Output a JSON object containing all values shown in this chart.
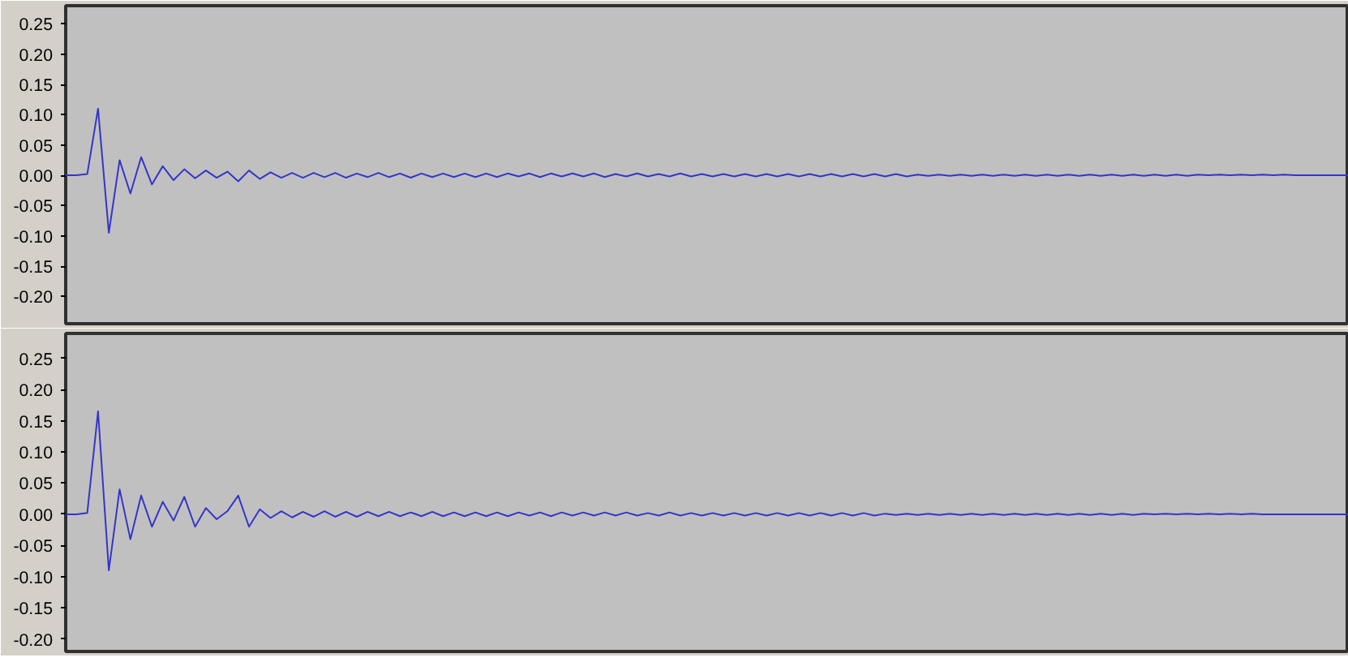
{
  "chart_data": [
    {
      "type": "line",
      "categories": [
        null,
        null,
        null,
        null,
        null,
        null,
        null,
        null,
        null,
        null,
        null,
        null,
        null,
        null,
        null,
        null,
        null,
        null,
        null,
        null,
        null,
        null,
        null,
        null,
        null,
        null,
        null,
        null,
        null,
        null,
        null,
        null,
        null,
        null,
        null,
        null,
        null,
        null,
        null,
        null,
        null,
        null,
        null,
        null,
        null,
        null,
        null,
        null,
        null,
        null,
        null,
        null,
        null,
        null,
        null,
        null,
        null,
        null,
        null,
        null,
        null,
        null,
        null,
        null,
        null,
        null,
        null,
        null,
        null,
        null,
        null,
        null,
        null,
        null,
        null,
        null,
        null,
        null,
        null,
        null,
        null,
        null,
        null,
        null,
        null,
        null,
        null,
        null,
        null,
        null,
        null,
        null,
        null,
        null,
        null,
        null,
        null,
        null,
        null,
        null,
        null,
        null,
        null,
        null,
        null,
        null,
        null,
        null,
        null,
        null,
        null,
        null,
        null,
        null,
        null,
        null,
        null,
        null,
        null,
        null
      ],
      "series": [
        {
          "color": "#3535c8",
          "values": [
            0,
            0,
            0.002,
            0.11,
            -0.095,
            0.025,
            -0.03,
            0.03,
            -0.015,
            0.015,
            -0.008,
            0.01,
            -0.005,
            0.008,
            -0.004,
            0.006,
            -0.01,
            0.008,
            -0.006,
            0.005,
            -0.004,
            0.004,
            -0.004,
            0.004,
            -0.003,
            0.004,
            -0.004,
            0.003,
            -0.003,
            0.004,
            -0.003,
            0.003,
            -0.004,
            0.003,
            -0.003,
            0.003,
            -0.003,
            0.003,
            -0.003,
            0.003,
            -0.003,
            0.003,
            -0.002,
            0.003,
            -0.003,
            0.003,
            -0.002,
            0.003,
            -0.002,
            0.003,
            -0.003,
            0.002,
            -0.002,
            0.003,
            -0.002,
            0.002,
            -0.002,
            0.003,
            -0.002,
            0.002,
            -0.002,
            0.002,
            -0.002,
            0.002,
            -0.002,
            0.002,
            -0.002,
            0.002,
            -0.002,
            0.002,
            -0.002,
            0.002,
            -0.002,
            0.002,
            -0.002,
            0.002,
            -0.002,
            0.002,
            -0.002,
            0.001,
            -0.001,
            0.001,
            -0.001,
            0.001,
            -0.001,
            0.001,
            -0.001,
            0.001,
            -0.001,
            0.001,
            -0.001,
            0.001,
            -0.001,
            0.001,
            -0.001,
            0.001,
            -0.001,
            0.001,
            -0.001,
            0.001,
            -0.001,
            0.001,
            -0.001,
            0.001,
            -0.001,
            0.001,
            0,
            0.001,
            0,
            0.001,
            0,
            0.001,
            0,
            0.001,
            0,
            0,
            0,
            0,
            0,
            0
          ]
        }
      ],
      "ylim": [
        -0.245,
        0.28
      ],
      "yticks": [
        {
          "value": 0.25,
          "label": "0.25"
        },
        {
          "value": 0.2,
          "label": "0.20"
        },
        {
          "value": 0.15,
          "label": "0.15"
        },
        {
          "value": 0.1,
          "label": "0.10"
        },
        {
          "value": 0.05,
          "label": "0.05"
        },
        {
          "value": 0,
          "label": "0.00"
        },
        {
          "value": -0.05,
          "label": "-0.05"
        },
        {
          "value": -0.1,
          "label": "-0.10"
        },
        {
          "value": -0.15,
          "label": "-0.15"
        },
        {
          "value": -0.2,
          "label": "-0.20"
        }
      ],
      "tick_labels": "y",
      "grid": false
    },
    {
      "type": "line",
      "categories": [
        null,
        null,
        null,
        null,
        null,
        null,
        null,
        null,
        null,
        null,
        null,
        null,
        null,
        null,
        null,
        null,
        null,
        null,
        null,
        null,
        null,
        null,
        null,
        null,
        null,
        null,
        null,
        null,
        null,
        null,
        null,
        null,
        null,
        null,
        null,
        null,
        null,
        null,
        null,
        null,
        null,
        null,
        null,
        null,
        null,
        null,
        null,
        null,
        null,
        null,
        null,
        null,
        null,
        null,
        null,
        null,
        null,
        null,
        null,
        null,
        null,
        null,
        null,
        null,
        null,
        null,
        null,
        null,
        null,
        null,
        null,
        null,
        null,
        null,
        null,
        null,
        null,
        null,
        null,
        null,
        null,
        null,
        null,
        null,
        null,
        null,
        null,
        null,
        null,
        null,
        null,
        null,
        null,
        null,
        null,
        null,
        null,
        null,
        null,
        null,
        null,
        null,
        null,
        null,
        null,
        null,
        null,
        null,
        null,
        null,
        null,
        null,
        null,
        null,
        null,
        null,
        null,
        null,
        null,
        null
      ],
      "series": [
        {
          "color": "#3535c8",
          "values": [
            0,
            0,
            0.002,
            0.165,
            -0.09,
            0.04,
            -0.04,
            0.03,
            -0.02,
            0.02,
            -0.01,
            0.028,
            -0.02,
            0.01,
            -0.008,
            0.005,
            0.03,
            -0.02,
            0.008,
            -0.006,
            0.005,
            -0.005,
            0.004,
            -0.004,
            0.005,
            -0.004,
            0.004,
            -0.004,
            0.004,
            -0.003,
            0.004,
            -0.003,
            0.003,
            -0.003,
            0.004,
            -0.003,
            0.003,
            -0.003,
            0.003,
            -0.003,
            0.003,
            -0.003,
            0.003,
            -0.002,
            0.003,
            -0.003,
            0.003,
            -0.002,
            0.003,
            -0.002,
            0.003,
            -0.002,
            0.003,
            -0.002,
            0.002,
            -0.002,
            0.003,
            -0.002,
            0.002,
            -0.002,
            0.002,
            -0.002,
            0.002,
            -0.002,
            0.002,
            -0.002,
            0.002,
            -0.002,
            0.002,
            -0.002,
            0.002,
            -0.002,
            0.002,
            -0.002,
            0.002,
            -0.002,
            0.001,
            -0.001,
            0.001,
            -0.001,
            0.001,
            -0.001,
            0.001,
            -0.001,
            0.001,
            -0.001,
            0.001,
            -0.001,
            0.001,
            -0.001,
            0.001,
            -0.001,
            0.001,
            -0.001,
            0.001,
            -0.001,
            0.001,
            -0.001,
            0.001,
            -0.001,
            0.001,
            0,
            0.001,
            0,
            0.001,
            0,
            0.001,
            0,
            0.001,
            0,
            0.001,
            0,
            0,
            0,
            0,
            0,
            0,
            0,
            0,
            0
          ]
        }
      ],
      "ylim": [
        -0.22,
        0.29
      ],
      "yticks": [
        {
          "value": 0.25,
          "label": "0.25"
        },
        {
          "value": 0.2,
          "label": "0.20"
        },
        {
          "value": 0.15,
          "label": "0.15"
        },
        {
          "value": 0.1,
          "label": "0.10"
        },
        {
          "value": 0.05,
          "label": "0.05"
        },
        {
          "value": 0,
          "label": "0.00"
        },
        {
          "value": -0.05,
          "label": "-0.05"
        },
        {
          "value": -0.1,
          "label": "-0.10"
        },
        {
          "value": -0.15,
          "label": "-0.15"
        },
        {
          "value": -0.2,
          "label": "-0.20"
        }
      ],
      "tick_labels": "y",
      "grid": false
    }
  ]
}
